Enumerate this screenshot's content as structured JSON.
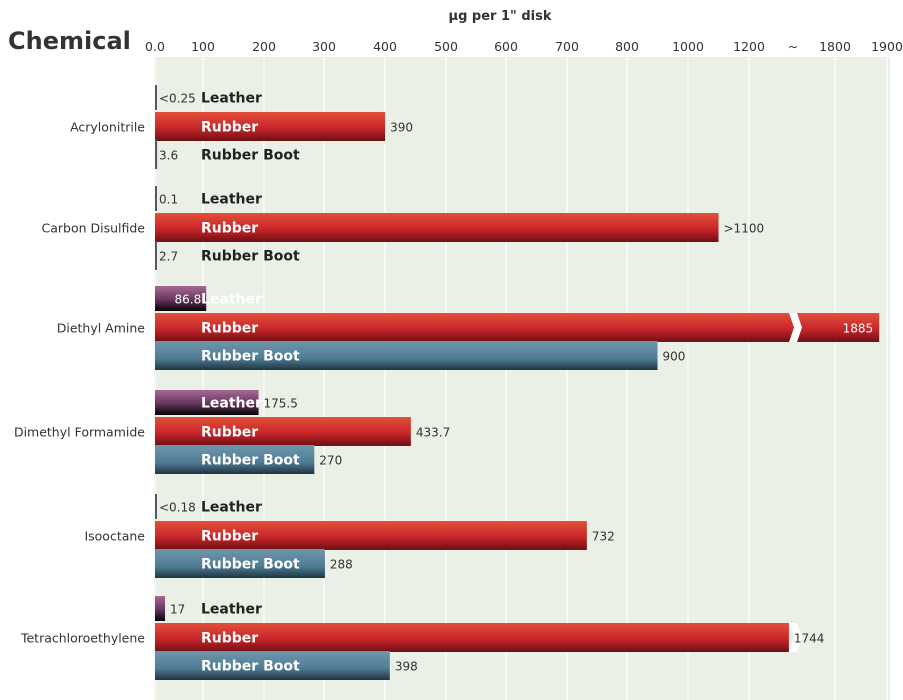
{
  "chart_data": {
    "type": "bar",
    "orientation": "horizontal",
    "title": "Chemical",
    "xlabel": "µg per 1\" disk",
    "x_ticks": [
      "0.0",
      "100",
      "200",
      "300",
      "400",
      "500",
      "600",
      "700",
      "800",
      "1000",
      "1200",
      "~",
      "1800",
      "1900"
    ],
    "axis_break": "~",
    "grid": true,
    "categories": [
      "Acrylonitrile",
      "Carbon Disulfide",
      "Diethyl Amine",
      "Dimethyl Formamide",
      "Isooctane",
      "Tetrachloroethylene"
    ],
    "series": [
      {
        "name": "Leather",
        "color": "#8a4a7a",
        "values": [
          0.25,
          0.1,
          86.8,
          175.5,
          0.18,
          17
        ],
        "labels": [
          "<0.25",
          "0.1",
          "86.8",
          "175.5",
          "<0.18",
          "17"
        ]
      },
      {
        "name": "Rubber",
        "color": "#c8262a",
        "values": [
          390,
          1100,
          1885,
          433.7,
          732,
          1744
        ],
        "labels": [
          "390",
          ">1100",
          "1885",
          "433.7",
          "732",
          "1744"
        ]
      },
      {
        "name": "Rubber Boot",
        "color": "#4f7c95",
        "values": [
          3.6,
          2.7,
          900,
          270,
          288,
          398
        ],
        "labels": [
          "3.6",
          "2.7",
          "900",
          "270",
          "288",
          "398"
        ]
      }
    ]
  }
}
